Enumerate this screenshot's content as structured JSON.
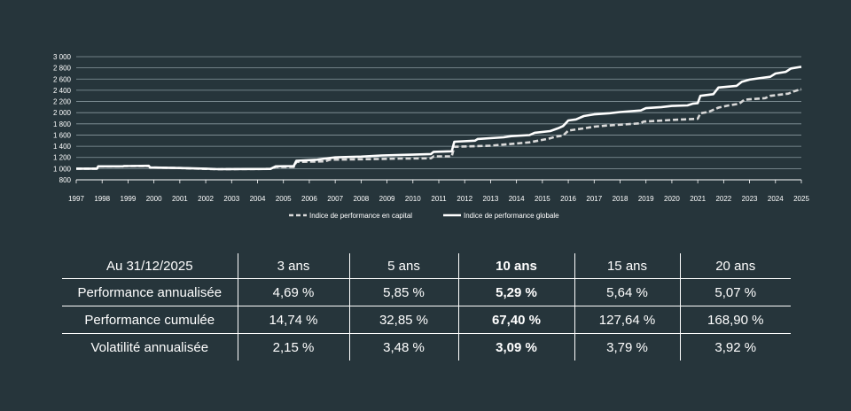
{
  "chart_data": {
    "type": "line",
    "x_ticks": [
      "1997",
      "1998",
      "1999",
      "2000",
      "2001",
      "2002",
      "2003",
      "2004",
      "2005",
      "2006",
      "2007",
      "2008",
      "2009",
      "2010",
      "2011",
      "2012",
      "2013",
      "2014",
      "2015",
      "2016",
      "2017",
      "2018",
      "2019",
      "2020",
      "2021",
      "2022",
      "2023",
      "2024",
      "2025"
    ],
    "y_ticks": [
      "3 000",
      "2 800",
      "2 600",
      "2 400",
      "2 200",
      "2 000",
      "1 800",
      "1 600",
      "1 400",
      "1 200",
      "1 000",
      "800"
    ],
    "ylim": [
      800,
      3000
    ],
    "xlim": [
      1997,
      2025
    ],
    "grid": true,
    "legend_position": "bottom-center",
    "series": [
      {
        "name": "Indice de performance en capital",
        "style": "dashed",
        "color": "#d9d9d9",
        "points": [
          [
            1997.0,
            1000
          ],
          [
            1997.8,
            1000
          ],
          [
            1997.85,
            1040
          ],
          [
            1998.8,
            1040
          ],
          [
            1998.85,
            1045
          ],
          [
            1999.8,
            1045
          ],
          [
            1999.85,
            1020
          ],
          [
            2001.0,
            1010
          ],
          [
            2002.0,
            995
          ],
          [
            2002.5,
            990
          ],
          [
            2004.5,
            995
          ],
          [
            2004.7,
            1030
          ],
          [
            2005.4,
            1030
          ],
          [
            2005.5,
            1120
          ],
          [
            2006.6,
            1130
          ],
          [
            2006.8,
            1160
          ],
          [
            2008.5,
            1170
          ],
          [
            2009.5,
            1180
          ],
          [
            2010.7,
            1185
          ],
          [
            2010.8,
            1220
          ],
          [
            2011.5,
            1220
          ],
          [
            2011.6,
            1390
          ],
          [
            2013.0,
            1410
          ],
          [
            2014.5,
            1470
          ],
          [
            2015.3,
            1540
          ],
          [
            2015.5,
            1570
          ],
          [
            2015.8,
            1590
          ],
          [
            2016.0,
            1680
          ],
          [
            2016.6,
            1720
          ],
          [
            2017.0,
            1750
          ],
          [
            2017.5,
            1770
          ],
          [
            2018.2,
            1790
          ],
          [
            2018.8,
            1810
          ],
          [
            2018.9,
            1840
          ],
          [
            2020.0,
            1870
          ],
          [
            2020.5,
            1880
          ],
          [
            2021.0,
            1890
          ],
          [
            2021.1,
            1990
          ],
          [
            2021.4,
            2010
          ],
          [
            2021.8,
            2090
          ],
          [
            2022.2,
            2130
          ],
          [
            2022.6,
            2160
          ],
          [
            2022.8,
            2230
          ],
          [
            2023.6,
            2260
          ],
          [
            2023.8,
            2300
          ],
          [
            2024.5,
            2340
          ],
          [
            2024.7,
            2380
          ],
          [
            2025.0,
            2420
          ]
        ]
      },
      {
        "name": "Indice de performance globale",
        "style": "solid",
        "color": "#ffffff",
        "points": [
          [
            1997.0,
            1000
          ],
          [
            1997.8,
            1000
          ],
          [
            1997.85,
            1040
          ],
          [
            1998.8,
            1040
          ],
          [
            1998.85,
            1045
          ],
          [
            1999.8,
            1050
          ],
          [
            1999.85,
            1020
          ],
          [
            2001.0,
            1010
          ],
          [
            2002.0,
            1000
          ],
          [
            2002.5,
            990
          ],
          [
            2004.5,
            995
          ],
          [
            2004.7,
            1040
          ],
          [
            2005.4,
            1045
          ],
          [
            2005.5,
            1140
          ],
          [
            2006.3,
            1160
          ],
          [
            2006.6,
            1180
          ],
          [
            2007.0,
            1200
          ],
          [
            2008.0,
            1215
          ],
          [
            2008.8,
            1235
          ],
          [
            2009.5,
            1245
          ],
          [
            2010.0,
            1250
          ],
          [
            2010.7,
            1260
          ],
          [
            2010.8,
            1300
          ],
          [
            2011.5,
            1310
          ],
          [
            2011.6,
            1480
          ],
          [
            2012.4,
            1500
          ],
          [
            2012.5,
            1530
          ],
          [
            2013.5,
            1560
          ],
          [
            2013.8,
            1580
          ],
          [
            2014.5,
            1600
          ],
          [
            2014.7,
            1640
          ],
          [
            2015.3,
            1670
          ],
          [
            2015.6,
            1720
          ],
          [
            2015.8,
            1760
          ],
          [
            2016.0,
            1860
          ],
          [
            2016.3,
            1880
          ],
          [
            2016.6,
            1940
          ],
          [
            2017.0,
            1970
          ],
          [
            2017.6,
            1990
          ],
          [
            2018.0,
            2010
          ],
          [
            2018.8,
            2040
          ],
          [
            2019.0,
            2080
          ],
          [
            2019.6,
            2100
          ],
          [
            2020.0,
            2120
          ],
          [
            2020.6,
            2130
          ],
          [
            2020.8,
            2160
          ],
          [
            2021.0,
            2170
          ],
          [
            2021.1,
            2300
          ],
          [
            2021.6,
            2330
          ],
          [
            2021.8,
            2450
          ],
          [
            2022.5,
            2480
          ],
          [
            2022.7,
            2550
          ],
          [
            2023.0,
            2590
          ],
          [
            2023.3,
            2610
          ],
          [
            2023.8,
            2640
          ],
          [
            2024.0,
            2700
          ],
          [
            2024.4,
            2730
          ],
          [
            2024.6,
            2790
          ],
          [
            2025.0,
            2820
          ]
        ]
      }
    ]
  },
  "table": {
    "header": [
      "Au 31/12/2025",
      "3 ans",
      "5 ans",
      "10 ans",
      "15 ans",
      "20 ans"
    ],
    "rows": [
      [
        "Performance annualisée",
        "4,69 %",
        "5,85 %",
        "5,29 %",
        "5,64 %",
        "5,07 %"
      ],
      [
        "Performance cumulée",
        "14,74 %",
        "32,85 %",
        "67,40 %",
        "127,64 %",
        "168,90 %"
      ],
      [
        "Volatilité annualisée",
        "2,15 %",
        "3,48 %",
        "3,09 %",
        "3,79 %",
        "3,92 %"
      ]
    ],
    "highlight_column": 3
  }
}
